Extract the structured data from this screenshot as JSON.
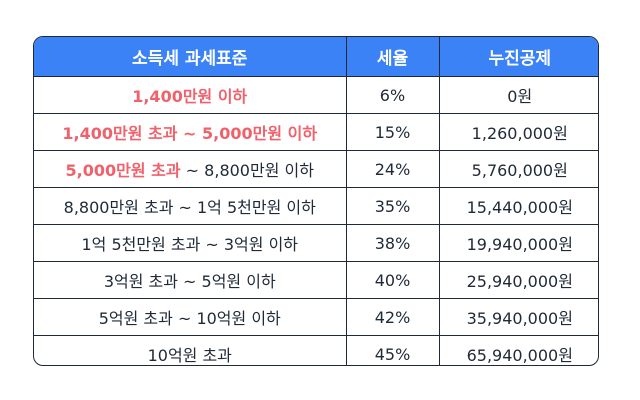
{
  "headers": [
    "소득세 과세표준",
    "세율",
    "누진공제"
  ],
  "rows": [
    {
      "bracket_hl": "1,400만원 이하",
      "bracket": "",
      "rate": "6%",
      "deduction": "0원"
    },
    {
      "bracket_hl": "1,400만원 초과 ~ 5,000만원 이하",
      "bracket": "",
      "rate": "15%",
      "deduction": "1,260,000원"
    },
    {
      "bracket_hl": "5,000만원 초과",
      "bracket": " ~ 8,800만원 이하",
      "rate": "24%",
      "deduction": "5,760,000원"
    },
    {
      "bracket_hl": "",
      "bracket": "8,800만원 초과 ~ 1억 5천만원 이하",
      "rate": "35%",
      "deduction": "15,440,000원"
    },
    {
      "bracket_hl": "",
      "bracket": "1억 5천만원 초과 ~ 3억원 이하",
      "rate": "38%",
      "deduction": "19,940,000원"
    },
    {
      "bracket_hl": "",
      "bracket": "3억원 초과 ~ 5억원 이하",
      "rate": "40%",
      "deduction": "25,940,000원"
    },
    {
      "bracket_hl": "",
      "bracket": "5억원 초과 ~ 10억원 이하",
      "rate": "42%",
      "deduction": "35,940,000원"
    },
    {
      "bracket_hl": "",
      "bracket": "10억원 초과",
      "rate": "45%",
      "deduction": "65,940,000원"
    }
  ],
  "colors": {
    "header_bg": "#3b82f6",
    "highlight_text": "#f0616b",
    "border": "#1f2937"
  }
}
